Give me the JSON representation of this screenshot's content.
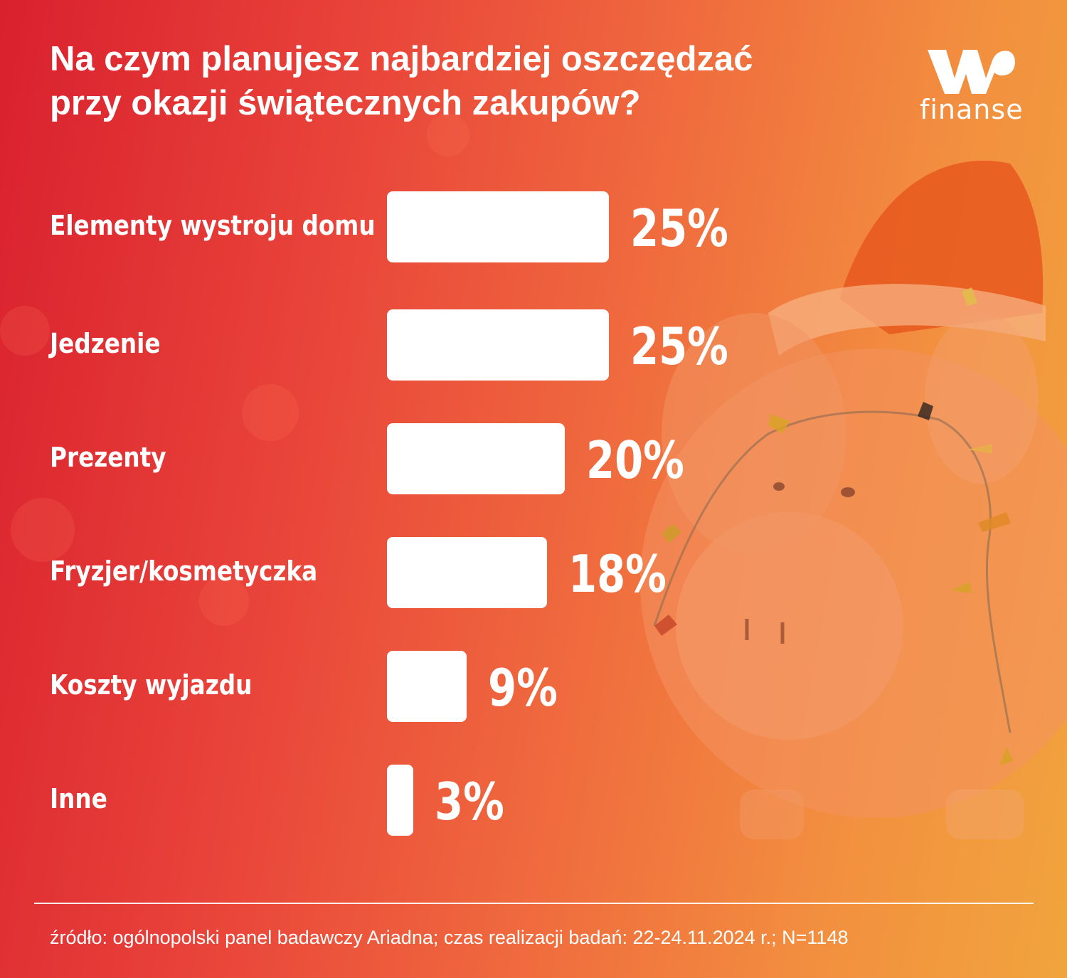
{
  "title_lines": [
    "Na czym planujesz najbardziej oszczędzać",
    "przy okazji świątecznych zakupów?"
  ],
  "logo": {
    "text": "finanse",
    "icon": "wp-logo"
  },
  "source": "źródło: ogólnopolski panel badawczy Ariadna; czas realizacji badań: 22-24.11.2024 r.; N=1148",
  "colors": {
    "background_start": "#d9202e",
    "background_end": "#f1a43d",
    "bar": "#ffffff",
    "text": "#ffffff"
  },
  "chart_data": {
    "type": "bar",
    "orientation": "horizontal",
    "title": "Na czym planujesz najbardziej oszczędzać przy okazji świątecznych zakupów?",
    "categories": [
      "Elementy wystroju domu",
      "Jedzenie",
      "Prezenty",
      "Fryzjer/kosmetyczka",
      "Koszty wyjazdu",
      "Inne"
    ],
    "values": [
      25,
      25,
      20,
      18,
      9,
      3
    ],
    "value_labels": [
      "25%",
      "25%",
      "20%",
      "18%",
      "9%",
      "3%"
    ],
    "unit": "%",
    "grid": false,
    "legend": "none"
  }
}
